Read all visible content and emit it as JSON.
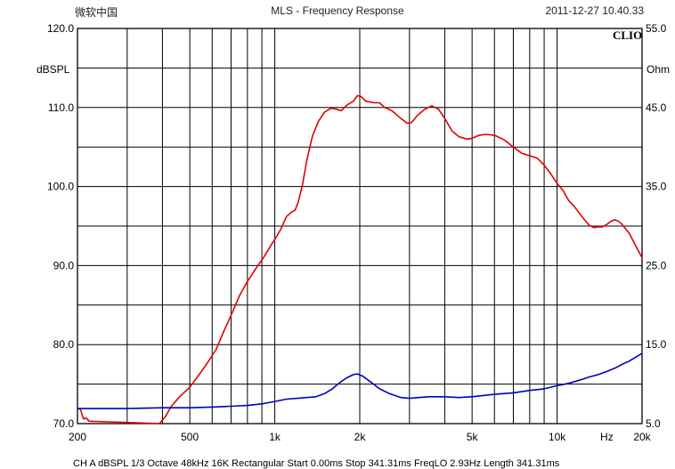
{
  "header": {
    "left": "微软中国",
    "title": "MLS - Frequency Response",
    "timestamp": "2011-12-27 10.40.33"
  },
  "brand": "CLIO",
  "footer_text": "CH A  dBSPL  1/3 Octave  48kHz  16K  Rectangular  Start 0.00ms  Stop 341.31ms  FreqLO 2.93Hz  Length 341.31ms",
  "chart_data": {
    "type": "line",
    "title": "MLS - Frequency Response",
    "xlabel": "Hz",
    "ylabel": "dBSPL",
    "y2label": "Ohm",
    "x_scale": "log",
    "xlim": [
      200,
      20000
    ],
    "ylim": [
      70,
      120
    ],
    "y2lim": [
      5,
      55
    ],
    "grid": true,
    "x_ticks": [
      {
        "value": 200,
        "label": "200"
      },
      {
        "value": 500,
        "label": "500"
      },
      {
        "value": 1000,
        "label": "1k"
      },
      {
        "value": 2000,
        "label": "2k"
      },
      {
        "value": 5000,
        "label": "5k"
      },
      {
        "value": 10000,
        "label": "10k"
      },
      {
        "value": 15000,
        "label": "Hz"
      },
      {
        "value": 20000,
        "label": "20k"
      }
    ],
    "y_ticks": [
      "70.0",
      "80.0",
      "90.0",
      "100.0",
      "110.0",
      "120.0"
    ],
    "y2_ticks": [
      "5.0",
      "15.0",
      "25.0",
      "35.0",
      "45.0",
      "55.0"
    ],
    "series": [
      {
        "axis": "left",
        "color": "#e00000",
        "points": [
          [
            200,
            71.9
          ],
          [
            205,
            71.8
          ],
          [
            210,
            70.6
          ],
          [
            215,
            70.7
          ],
          [
            220,
            70.3
          ],
          [
            390,
            70.0
          ],
          [
            410,
            70.9
          ],
          [
            430,
            72.2
          ],
          [
            460,
            73.4
          ],
          [
            500,
            74.6
          ],
          [
            540,
            76.2
          ],
          [
            580,
            77.8
          ],
          [
            620,
            79.4
          ],
          [
            660,
            81.7
          ],
          [
            700,
            83.7
          ],
          [
            750,
            86.2
          ],
          [
            800,
            88.0
          ],
          [
            860,
            89.7
          ],
          [
            920,
            91.2
          ],
          [
            970,
            92.6
          ],
          [
            1000,
            93.3
          ],
          [
            1050,
            94.6
          ],
          [
            1100,
            96.2
          ],
          [
            1150,
            96.8
          ],
          [
            1180,
            97.0
          ],
          [
            1210,
            98.0
          ],
          [
            1250,
            100.0
          ],
          [
            1300,
            103.4
          ],
          [
            1360,
            106.4
          ],
          [
            1430,
            108.3
          ],
          [
            1500,
            109.4
          ],
          [
            1580,
            109.9
          ],
          [
            1650,
            109.8
          ],
          [
            1720,
            109.6
          ],
          [
            1800,
            110.3
          ],
          [
            1900,
            110.8
          ],
          [
            1960,
            111.5
          ],
          [
            2020,
            111.4
          ],
          [
            2100,
            110.8
          ],
          [
            2250,
            110.6
          ],
          [
            2350,
            110.6
          ],
          [
            2450,
            110.0
          ],
          [
            2600,
            109.6
          ],
          [
            2800,
            108.6
          ],
          [
            2950,
            108.0
          ],
          [
            3050,
            108.1
          ],
          [
            3200,
            109.0
          ],
          [
            3400,
            109.8
          ],
          [
            3600,
            110.2
          ],
          [
            3800,
            109.8
          ],
          [
            4000,
            108.6
          ],
          [
            4250,
            107.0
          ],
          [
            4500,
            106.3
          ],
          [
            4800,
            106.0
          ],
          [
            5000,
            106.1
          ],
          [
            5300,
            106.5
          ],
          [
            5600,
            106.6
          ],
          [
            6000,
            106.5
          ],
          [
            6500,
            105.9
          ],
          [
            7000,
            105.0
          ],
          [
            7500,
            104.2
          ],
          [
            8000,
            103.9
          ],
          [
            8500,
            103.6
          ],
          [
            9000,
            102.7
          ],
          [
            9500,
            101.6
          ],
          [
            10000,
            100.4
          ],
          [
            10500,
            99.5
          ],
          [
            11000,
            98.2
          ],
          [
            11500,
            97.5
          ],
          [
            12000,
            96.6
          ],
          [
            12500,
            95.8
          ],
          [
            13000,
            95.1
          ],
          [
            13500,
            94.8
          ],
          [
            14000,
            94.9
          ],
          [
            14500,
            94.9
          ],
          [
            15000,
            95.2
          ],
          [
            15500,
            95.6
          ],
          [
            16000,
            95.8
          ],
          [
            16500,
            95.6
          ],
          [
            17000,
            95.2
          ],
          [
            18000,
            94.1
          ],
          [
            19000,
            92.5
          ],
          [
            20000,
            91.0
          ]
        ]
      },
      {
        "axis": "right",
        "color": "#0000c0",
        "points": [
          [
            200,
            6.9
          ],
          [
            300,
            6.9
          ],
          [
            400,
            7.0
          ],
          [
            500,
            7.0
          ],
          [
            600,
            7.1
          ],
          [
            700,
            7.2
          ],
          [
            800,
            7.3
          ],
          [
            900,
            7.5
          ],
          [
            1000,
            7.8
          ],
          [
            1100,
            8.1
          ],
          [
            1200,
            8.2
          ],
          [
            1400,
            8.4
          ],
          [
            1500,
            8.8
          ],
          [
            1600,
            9.4
          ],
          [
            1700,
            10.2
          ],
          [
            1800,
            10.8
          ],
          [
            1900,
            11.2
          ],
          [
            1960,
            11.3
          ],
          [
            2050,
            11.0
          ],
          [
            2200,
            10.2
          ],
          [
            2350,
            9.4
          ],
          [
            2550,
            8.8
          ],
          [
            2800,
            8.3
          ],
          [
            3000,
            8.2
          ],
          [
            3500,
            8.4
          ],
          [
            4000,
            8.4
          ],
          [
            4500,
            8.3
          ],
          [
            5000,
            8.4
          ],
          [
            6000,
            8.7
          ],
          [
            7000,
            8.9
          ],
          [
            8000,
            9.2
          ],
          [
            9000,
            9.4
          ],
          [
            10000,
            9.8
          ],
          [
            11000,
            10.1
          ],
          [
            12000,
            10.5
          ],
          [
            13000,
            10.9
          ],
          [
            14000,
            11.2
          ],
          [
            15000,
            11.6
          ],
          [
            16000,
            12.0
          ],
          [
            17000,
            12.5
          ],
          [
            18000,
            12.9
          ],
          [
            19000,
            13.4
          ],
          [
            20000,
            13.9
          ]
        ]
      }
    ]
  }
}
